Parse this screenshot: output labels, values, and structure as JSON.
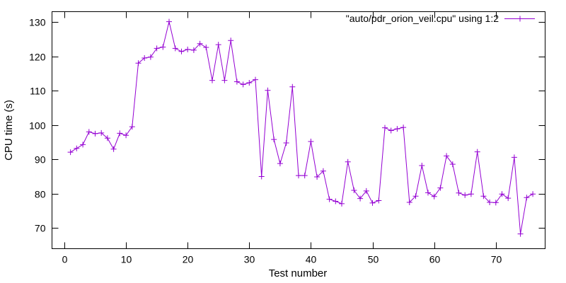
{
  "chart_data": {
    "type": "line",
    "title": "",
    "xlabel": "Test number",
    "ylabel": "CPU time (s)",
    "xlim": [
      -2,
      78
    ],
    "ylim": [
      64,
      133
    ],
    "xticks": [
      0,
      10,
      20,
      30,
      40,
      50,
      60,
      70
    ],
    "yticks": [
      70,
      80,
      90,
      100,
      110,
      120,
      130
    ],
    "grid": false,
    "legend_position": "top-right",
    "line_color": "#9400d3",
    "series": [
      {
        "name": "\"auto/pdr_orion_veil.cpu\" using 1:2",
        "marker": "plus",
        "x": [
          1,
          2,
          3,
          4,
          5,
          6,
          7,
          8,
          9,
          10,
          11,
          12,
          13,
          14,
          15,
          16,
          17,
          18,
          19,
          20,
          21,
          22,
          23,
          24,
          25,
          26,
          27,
          28,
          29,
          30,
          31,
          32,
          33,
          34,
          35,
          36,
          37,
          38,
          39,
          40,
          41,
          42,
          43,
          44,
          45,
          46,
          47,
          48,
          49,
          50,
          51,
          52,
          53,
          54,
          55,
          56,
          57,
          58,
          59,
          60,
          61,
          62,
          63,
          64,
          65,
          66,
          67,
          68,
          69,
          70,
          71,
          72,
          73,
          74,
          75,
          76
        ],
        "y": [
          92.1,
          93.2,
          94.3,
          98.0,
          97.5,
          97.7,
          96.2,
          93.0,
          97.6,
          97.0,
          99.5,
          118.0,
          119.5,
          119.8,
          122.3,
          122.7,
          130.1,
          122.3,
          121.4,
          122.0,
          121.8,
          123.7,
          122.6,
          113.0,
          123.4,
          113.0,
          124.6,
          112.6,
          111.8,
          112.3,
          113.2,
          85.0,
          110.1,
          95.8,
          88.8,
          94.8,
          111.1,
          85.3,
          85.3,
          95.2,
          84.9,
          86.6,
          78.4,
          77.8,
          77.1,
          89.3,
          81.0,
          78.6,
          80.8,
          77.3,
          78.0,
          99.2,
          98.4,
          98.9,
          99.3,
          77.5,
          79.3,
          88.2,
          80.3,
          79.2,
          81.7,
          91.0,
          88.6,
          80.2,
          79.6,
          79.9,
          92.2,
          79.3,
          77.5,
          77.4,
          79.9,
          78.7,
          90.6,
          68.3,
          78.9,
          79.9
        ]
      }
    ]
  }
}
